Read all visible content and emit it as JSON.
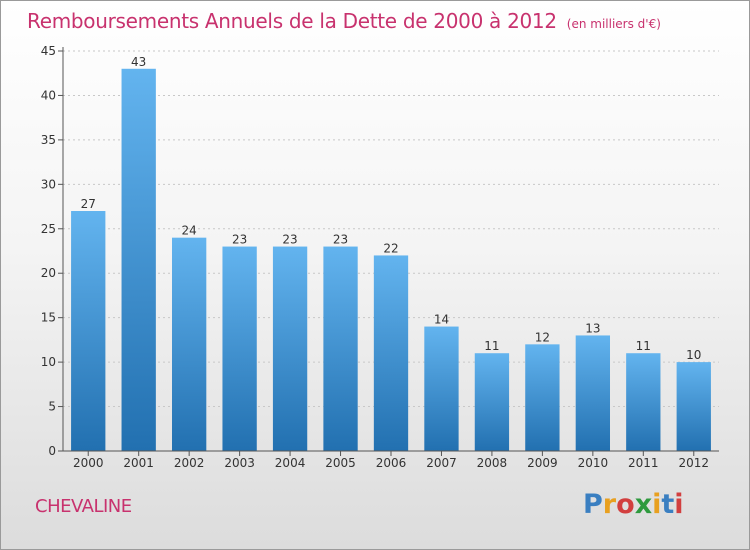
{
  "title": "Remboursements Annuels de la Dette de 2000 à 2012",
  "subtitle": "(en milliers d'€)",
  "commune": "CHEVALINE",
  "logo": {
    "letters": [
      "P",
      "r",
      "o",
      "x",
      "i",
      "t",
      "i"
    ],
    "colors": [
      "#3a7fc1",
      "#e8a020",
      "#d23f3f",
      "#2e9a3e",
      "#e8a020",
      "#3a7fc1",
      "#d23f3f"
    ]
  },
  "colors": {
    "bar_light": "#63b4ef",
    "bar_dark": "#2270b0",
    "title": "#c8326e",
    "grid": "#c8c8c8"
  },
  "chart_data": {
    "type": "bar",
    "categories": [
      "2000",
      "2001",
      "2002",
      "2003",
      "2004",
      "2005",
      "2006",
      "2007",
      "2008",
      "2009",
      "2010",
      "2011",
      "2012"
    ],
    "values": [
      27,
      43,
      24,
      23,
      23,
      23,
      22,
      14,
      11,
      12,
      13,
      11,
      10
    ],
    "ylim": [
      0,
      45
    ],
    "yticks": [
      0,
      5,
      10,
      15,
      20,
      25,
      30,
      35,
      40,
      45
    ],
    "grid": true,
    "title": "Remboursements Annuels de la Dette de 2000 à 2012",
    "xlabel": "",
    "ylabel": ""
  }
}
